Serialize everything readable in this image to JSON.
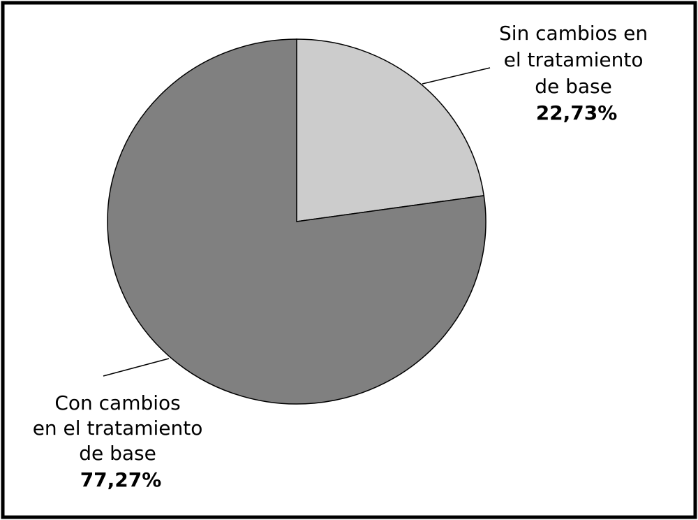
{
  "chart_data": {
    "type": "pie",
    "slices": [
      {
        "label_lines": [
          "Sin cambios en",
          "el tratamiento",
          "de base"
        ],
        "value_label": "22,73%",
        "value": 22.73,
        "color": "#cccccc"
      },
      {
        "label_lines": [
          "Con cambios",
          "en el tratamiento",
          "de base"
        ],
        "value_label": "77,27%",
        "value": 77.27,
        "color": "#808080"
      }
    ],
    "start_angle": "12 o'clock",
    "direction": "clockwise",
    "legend": "none",
    "labels": "outside with leader lines"
  }
}
